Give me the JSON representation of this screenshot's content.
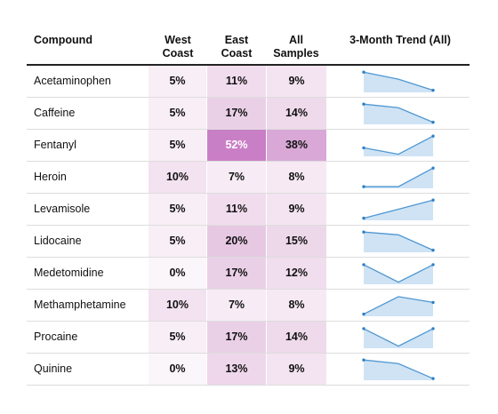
{
  "headers": {
    "compound": "Compound",
    "west_l1": "West",
    "west_l2": "Coast",
    "east_l1": "East",
    "east_l2": "Coast",
    "all_l1": "All",
    "all_l2": "Samples",
    "trend": "3-Month Trend (All)"
  },
  "rows": [
    {
      "name": "Acetaminophen",
      "west": "5%",
      "east": "11%",
      "all": "9%",
      "west_bg": "#f8eef5",
      "east_bg": "#f1dcee",
      "all_bg": "#f4e4f1",
      "east_fg": "#111111",
      "trend": [
        0.95,
        0.62,
        0.1
      ]
    },
    {
      "name": "Caffeine",
      "west": "5%",
      "east": "17%",
      "all": "14%",
      "west_bg": "#f8eef5",
      "east_bg": "#ead0e7",
      "all_bg": "#eedaeb",
      "east_fg": "#111111",
      "trend": [
        0.95,
        0.78,
        0.1
      ]
    },
    {
      "name": "Fentanyl",
      "west": "5%",
      "east": "52%",
      "all": "38%",
      "west_bg": "#f8eef5",
      "east_bg": "#c97fc6",
      "all_bg": "#d9a8d6",
      "east_fg": "#ffffff",
      "trend": [
        0.4,
        0.1,
        0.95
      ]
    },
    {
      "name": "Heroin",
      "west": "10%",
      "east": "7%",
      "all": "8%",
      "west_bg": "#f3e2f0",
      "east_bg": "#f7ecf5",
      "all_bg": "#f6e9f3",
      "east_fg": "#111111",
      "trend": [
        0.08,
        0.08,
        0.95
      ]
    },
    {
      "name": "Levamisole",
      "west": "5%",
      "east": "11%",
      "all": "9%",
      "west_bg": "#f8eef5",
      "east_bg": "#f1dcee",
      "all_bg": "#f4e4f1",
      "east_fg": "#111111",
      "trend": [
        0.1,
        0.52,
        0.95
      ]
    },
    {
      "name": "Lidocaine",
      "west": "5%",
      "east": "20%",
      "all": "15%",
      "west_bg": "#f8eef5",
      "east_bg": "#e6c8e3",
      "all_bg": "#edd8ea",
      "east_fg": "#111111",
      "trend": [
        0.95,
        0.82,
        0.1
      ]
    },
    {
      "name": "Medetomidine",
      "west": "0%",
      "east": "17%",
      "all": "12%",
      "west_bg": "#fbf6fa",
      "east_bg": "#ead0e7",
      "all_bg": "#f0dded",
      "east_fg": "#111111",
      "trend": [
        0.92,
        0.1,
        0.92
      ]
    },
    {
      "name": "Methamphetamine",
      "west": "10%",
      "east": "7%",
      "all": "8%",
      "west_bg": "#f3e2f0",
      "east_bg": "#f7ecf5",
      "all_bg": "#f6e9f3",
      "east_fg": "#111111",
      "trend": [
        0.1,
        0.92,
        0.65
      ]
    },
    {
      "name": "Procaine",
      "west": "5%",
      "east": "17%",
      "all": "14%",
      "west_bg": "#f8eef5",
      "east_bg": "#ead0e7",
      "all_bg": "#eedaeb",
      "east_fg": "#111111",
      "trend": [
        0.92,
        0.1,
        0.92
      ]
    },
    {
      "name": "Quinine",
      "west": "0%",
      "east": "13%",
      "all": "9%",
      "west_bg": "#fbf6fa",
      "east_bg": "#eed6eb",
      "all_bg": "#f4e4f1",
      "east_fg": "#111111",
      "trend": [
        0.95,
        0.78,
        0.08
      ]
    }
  ]
}
